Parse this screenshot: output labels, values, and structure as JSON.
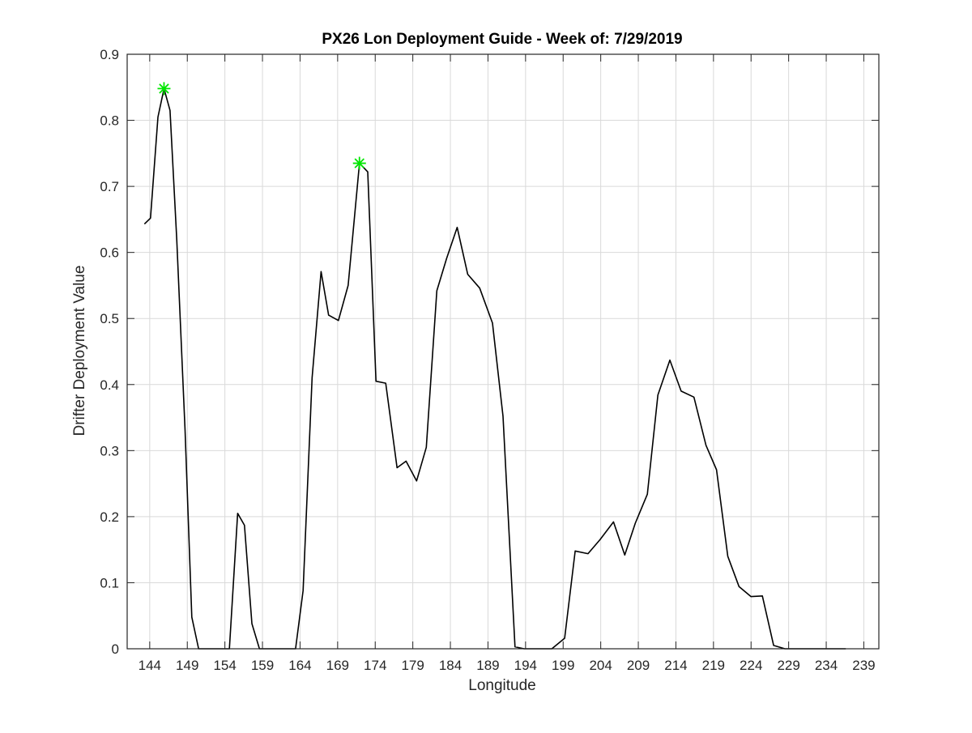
{
  "chart_data": {
    "type": "line",
    "title": "PX26 Lon Deployment Guide - Week of: 7/29/2019",
    "xlabel": "Longitude",
    "ylabel": "Drifter Deployment Value",
    "xlim": [
      141,
      241
    ],
    "ylim": [
      0,
      0.9
    ],
    "xticks": [
      144,
      149,
      154,
      159,
      164,
      169,
      174,
      179,
      184,
      189,
      194,
      199,
      204,
      209,
      214,
      219,
      224,
      229,
      234,
      239
    ],
    "yticks": [
      0,
      0.1,
      0.2,
      0.3,
      0.4,
      0.5,
      0.6,
      0.7,
      0.8,
      0.9
    ],
    "grid": true,
    "series": [
      {
        "color": "#000000",
        "points": [
          [
            143.3,
            0.643
          ],
          [
            144.1,
            0.652
          ],
          [
            145.1,
            0.805
          ],
          [
            145.9,
            0.848
          ],
          [
            146.7,
            0.815
          ],
          [
            147.6,
            0.62
          ],
          [
            148.7,
            0.33
          ],
          [
            149.6,
            0.048
          ],
          [
            150.5,
            0.0
          ],
          [
            151.6,
            0.0
          ],
          [
            153.4,
            0.0
          ],
          [
            154.6,
            0.0
          ],
          [
            155.7,
            0.205
          ],
          [
            156.6,
            0.187
          ],
          [
            157.6,
            0.038
          ],
          [
            158.6,
            0.0
          ],
          [
            160.5,
            0.0
          ],
          [
            163.4,
            0.0
          ],
          [
            164.4,
            0.088
          ],
          [
            165.6,
            0.41
          ],
          [
            166.8,
            0.571
          ],
          [
            167.8,
            0.505
          ],
          [
            169.1,
            0.497
          ],
          [
            170.4,
            0.55
          ],
          [
            171.9,
            0.735
          ],
          [
            173.0,
            0.722
          ],
          [
            174.1,
            0.405
          ],
          [
            175.4,
            0.402
          ],
          [
            176.9,
            0.274
          ],
          [
            178.1,
            0.284
          ],
          [
            179.5,
            0.254
          ],
          [
            180.8,
            0.305
          ],
          [
            182.2,
            0.542
          ],
          [
            183.5,
            0.591
          ],
          [
            184.9,
            0.638
          ],
          [
            186.3,
            0.567
          ],
          [
            187.9,
            0.546
          ],
          [
            189.6,
            0.493
          ],
          [
            191.0,
            0.352
          ],
          [
            192.6,
            0.003
          ],
          [
            193.8,
            0.0
          ],
          [
            195.6,
            0.0
          ],
          [
            197.5,
            0.0
          ],
          [
            199.2,
            0.016
          ],
          [
            200.6,
            0.148
          ],
          [
            202.3,
            0.144
          ],
          [
            203.9,
            0.165
          ],
          [
            205.7,
            0.192
          ],
          [
            207.2,
            0.142
          ],
          [
            208.6,
            0.19
          ],
          [
            210.2,
            0.234
          ],
          [
            211.6,
            0.384
          ],
          [
            213.2,
            0.437
          ],
          [
            214.7,
            0.39
          ],
          [
            216.4,
            0.381
          ],
          [
            218.0,
            0.308
          ],
          [
            219.4,
            0.271
          ],
          [
            220.9,
            0.14
          ],
          [
            222.4,
            0.094
          ],
          [
            224.0,
            0.079
          ],
          [
            225.5,
            0.08
          ],
          [
            227.0,
            0.005
          ],
          [
            228.5,
            0.0
          ],
          [
            230.5,
            0.0
          ],
          [
            233.5,
            0.0
          ],
          [
            236.6,
            0.0
          ]
        ]
      }
    ],
    "markers": [
      {
        "x": 145.9,
        "y": 0.848,
        "color": "#00e600",
        "symbol": "asterisk"
      },
      {
        "x": 171.9,
        "y": 0.735,
        "color": "#00e600",
        "symbol": "asterisk"
      }
    ]
  }
}
